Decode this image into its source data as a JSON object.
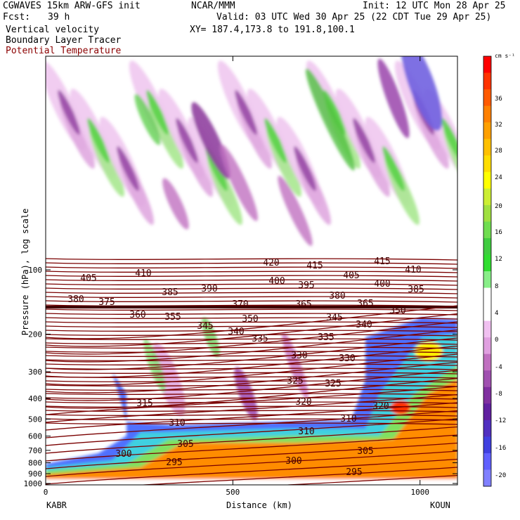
{
  "header": {
    "left_line1": "CGWAVES 15km ARW-GFS init",
    "left_line2_label": "Fcst:",
    "left_line2_value": "39 h",
    "field1": "Vertical velocity",
    "field2": "Boundary Layer Tracer",
    "field3": "Potential Temperature",
    "center_line1": "NCAR/MMM",
    "init": "Init: 12 UTC Mon 28 Apr 25",
    "valid": "Valid: 03 UTC Wed 30 Apr 25 (22 CDT Tue 29 Apr 25)",
    "xy": "XY= 187.4,173.8 to 191.8,100.1"
  },
  "colors": {
    "contour": "#7a0000",
    "field3_text": "#8b0000"
  },
  "chart_data": {
    "type": "heatmap",
    "title": "",
    "ylabel": "Pressure (hPa), log scale",
    "xlabel": "Distance (km)",
    "x_ticks": [
      0,
      500,
      1000
    ],
    "x_range": [
      0,
      1100
    ],
    "y_ticks": [
      100,
      200,
      300,
      400,
      500,
      600,
      700,
      800,
      900,
      1000
    ],
    "y_scale": "log",
    "x_endpoints": {
      "left": "KABR",
      "right": "KOUN"
    },
    "colorbar": {
      "unit": "cm s⁻¹",
      "labels": [
        "36",
        "32",
        "28",
        "24",
        "20",
        "16",
        "12",
        "8",
        "4",
        "0",
        "-4",
        "-8",
        "-12",
        "-16",
        "-20"
      ],
      "colors": [
        "#ff0000",
        "#ff3300",
        "#ff5a00",
        "#ff8000",
        "#ffa000",
        "#ffc000",
        "#ffdd00",
        "#ffff00",
        "#ccee33",
        "#a0e040",
        "#70dd50",
        "#40cc40",
        "#30dd30",
        "#88ee88",
        "#ffffff",
        "#ffffff",
        "#f0c0f0",
        "#e0a0e0",
        "#c070c0",
        "#a050b0",
        "#8030a0",
        "#6020a0",
        "#5030c0",
        "#4040e0",
        "#6060ff",
        "#8080ff"
      ]
    },
    "theta_contour_labels": [
      "420",
      "415",
      "415",
      "410",
      "410",
      "405",
      "405",
      "400",
      "400",
      "395",
      "390",
      "385",
      "385",
      "380",
      "380",
      "375",
      "370",
      "365",
      "365",
      "360",
      "355",
      "350",
      "350",
      "345",
      "345",
      "340",
      "340",
      "335",
      "335",
      "330",
      "330",
      "325",
      "325",
      "320",
      "320",
      "315",
      "310",
      "310",
      "310",
      "305",
      "305",
      "300",
      "300",
      "295",
      "295"
    ]
  }
}
